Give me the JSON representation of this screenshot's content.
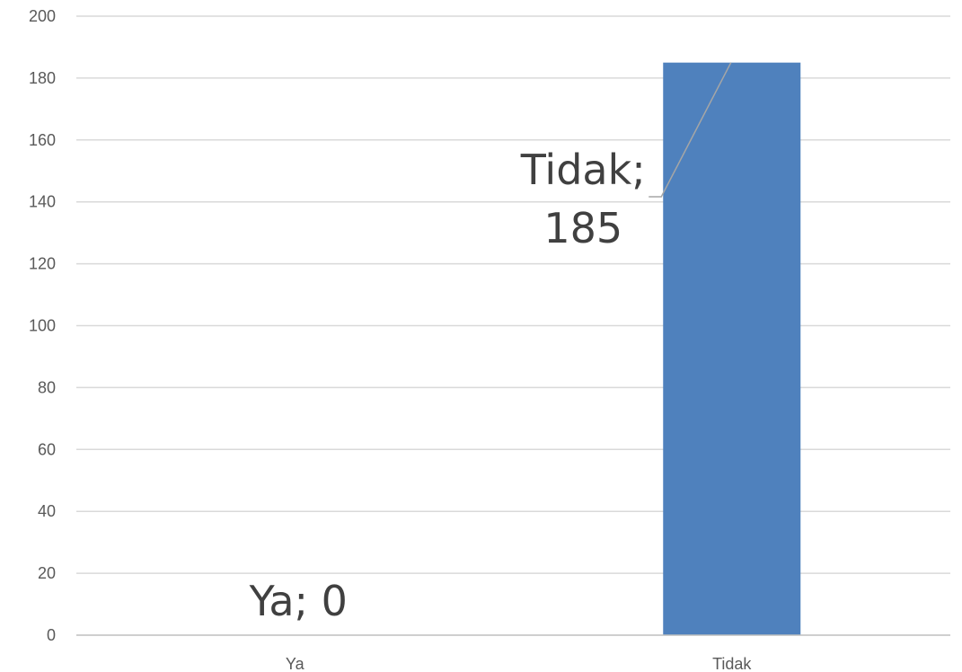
{
  "chart_data": {
    "type": "bar",
    "categories": [
      "Ya",
      "Tidak"
    ],
    "values": [
      0,
      185
    ],
    "ylim": [
      0,
      200
    ],
    "yticks": [
      0,
      20,
      40,
      60,
      80,
      100,
      120,
      140,
      160,
      180,
      200
    ],
    "grid": true,
    "legend": "none",
    "bar_color": "#4f81bd",
    "data_labels": [
      {
        "lines": [
          "Ya; 0"
        ]
      },
      {
        "lines": [
          "Tidak;",
          "185"
        ]
      }
    ]
  }
}
